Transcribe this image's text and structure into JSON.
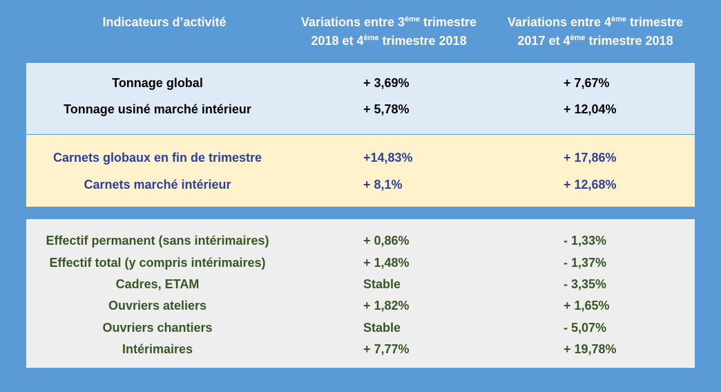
{
  "header": {
    "label_col": "Indicateurs d’activité",
    "col1_a": "Variations entre 3",
    "col1_sup": "ème",
    "col1_b": " trimestre",
    "col1_line2_a": "2018 et 4",
    "col1_line2_sup": "ème",
    "col1_line2_b": " trimestre 2018",
    "col2_a": "Variations entre 4",
    "col2_sup": "ème",
    "col2_b": " trimestre",
    "col2_line2_a": "2017 et 4",
    "col2_line2_sup": "ème",
    "col2_line2_b": " trimestre 2018"
  },
  "tonnage": [
    {
      "label": "Tonnage global",
      "v1": "+ 3,69%",
      "v2": "+ 7,67%"
    },
    {
      "label": "Tonnage usiné marché intérieur",
      "v1": "+ 5,78%",
      "v2": "+ 12,04%"
    }
  ],
  "carnets": [
    {
      "label": "Carnets globaux en fin de trimestre",
      "v1": "+14,83%",
      "v2": "+ 17,86%"
    },
    {
      "label": "Carnets marché intérieur",
      "v1": "+ 8,1%",
      "v2": "+ 12,68%"
    }
  ],
  "effectifs": [
    {
      "label": "Effectif permanent (sans intérimaires)",
      "v1": "+ 0,86%",
      "v2": "- 1,33%"
    },
    {
      "label": "Effectif total (y compris intérimaires)",
      "v1": "+ 1,48%",
      "v2": "- 1,37%"
    },
    {
      "label": "Cadres, ETAM",
      "v1": "Stable",
      "v2": "- 3,35%"
    },
    {
      "label": "Ouvriers ateliers",
      "v1": "+ 1,82%",
      "v2": "+ 1,65%"
    },
    {
      "label": "Ouvriers chantiers",
      "v1": "Stable",
      "v2": "- 5,07%"
    },
    {
      "label": "Intérimaires",
      "v1": "+ 7,77%",
      "v2": "+ 19,78%"
    }
  ],
  "colors": {
    "background": "#5b9bd5",
    "tonnage_bg": "#deebf7",
    "carnets_bg": "#fff2cc",
    "effectifs_bg": "#eeeeee",
    "carnets_text": "#2e3f9c",
    "effectifs_text": "#375623"
  }
}
